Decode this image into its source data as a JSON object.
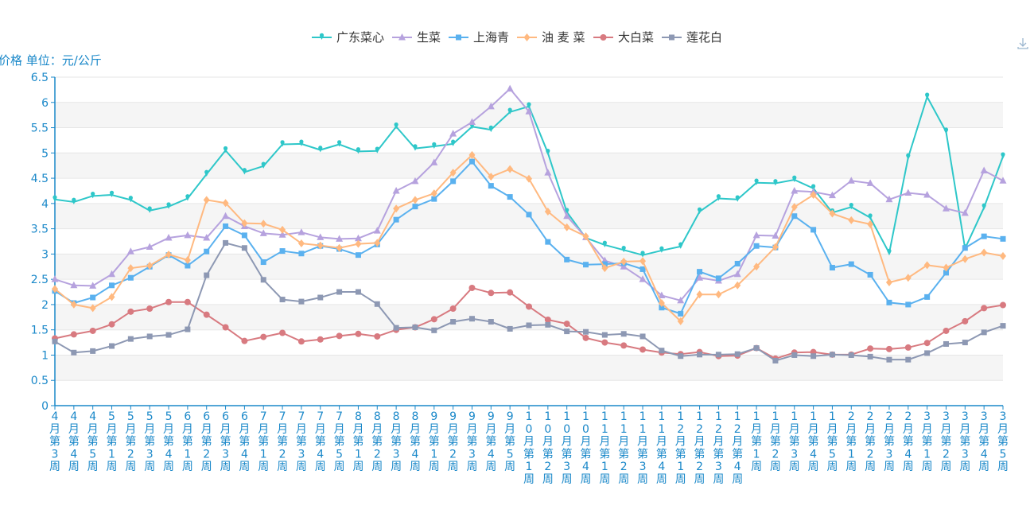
{
  "chart_data": {
    "type": "line",
    "ylabel": "价格 单位：元/公斤",
    "ylim": [
      0,
      6.5
    ],
    "yticks": [
      "0",
      "0.5",
      "1",
      "1.5",
      "2",
      "2.5",
      "3",
      "3.5",
      "4",
      "4.5",
      "5",
      "5.5",
      "6",
      "6.5"
    ],
    "grid": "horizontal bands",
    "legend_position": "top-center",
    "categories": [
      "4月第3周",
      "4月第4周",
      "4月第5周",
      "5月第1周",
      "5月第2周",
      "5月第3周",
      "5月第4周",
      "6月第1周",
      "6月第2周",
      "6月第3周",
      "6月第4周",
      "7月第1周",
      "7月第2周",
      "7月第3周",
      "7月第4周",
      "7月第5周",
      "8月第1周",
      "8月第2周",
      "8月第3周",
      "8月第4周",
      "9月第1周",
      "9月第2周",
      "9月第3周",
      "9月第4周",
      "9月第5周",
      "10月第1周",
      "10月第2周",
      "10月第3周",
      "10月第4周",
      "11月第1周",
      "11月第2周",
      "11月第3周",
      "11月第4周",
      "12月第1周",
      "12月第2周",
      "12月第3周",
      "12月第4周",
      "1月第1周",
      "1月第2周",
      "1月第3周",
      "1月第4周",
      "1月第5周",
      "2月第1周",
      "2月第2周",
      "2月第3周",
      "2月第4周",
      "3月第1周",
      "3月第2周",
      "3月第3周",
      "3月第4周",
      "3月第5周"
    ],
    "series": [
      {
        "name": "广东菜心",
        "color": "#2ec7c9",
        "marker": "pin",
        "values": [
          4.08,
          4.03,
          4.15,
          4.17,
          4.07,
          3.86,
          3.94,
          4.1,
          4.58,
          5.05,
          4.62,
          4.74,
          5.17,
          5.18,
          5.06,
          5.17,
          5.03,
          5.04,
          5.52,
          5.09,
          5.13,
          5.18,
          5.52,
          5.46,
          5.81,
          5.92,
          5.0,
          3.83,
          3.32,
          3.18,
          3.08,
          2.98,
          3.07,
          3.15,
          3.84,
          4.1,
          4.08,
          4.41,
          4.4,
          4.47,
          4.3,
          3.82,
          3.93,
          3.72,
          3.02,
          4.91,
          6.11,
          5.42,
          3.11,
          3.92,
          4.93
        ]
      },
      {
        "name": "生菜",
        "color": "#b6a2de",
        "marker": "triangle",
        "values": [
          2.5,
          2.38,
          2.37,
          2.6,
          3.05,
          3.14,
          3.32,
          3.37,
          3.32,
          3.75,
          3.55,
          3.41,
          3.38,
          3.43,
          3.33,
          3.3,
          3.31,
          3.46,
          4.25,
          4.44,
          4.81,
          5.38,
          5.61,
          5.92,
          6.27,
          5.82,
          4.61,
          3.75,
          3.33,
          2.87,
          2.75,
          2.5,
          2.18,
          2.08,
          2.53,
          2.47,
          2.6,
          3.37,
          3.36,
          4.25,
          4.23,
          4.16,
          4.45,
          4.4,
          4.08,
          4.21,
          4.17,
          3.9,
          3.81,
          4.65,
          4.45
        ]
      },
      {
        "name": "上海青",
        "color": "#5ab1ef",
        "marker": "square",
        "values": [
          2.27,
          2.03,
          2.14,
          2.38,
          2.53,
          2.75,
          2.98,
          2.77,
          3.05,
          3.55,
          3.37,
          2.84,
          3.06,
          3.01,
          3.16,
          3.1,
          2.98,
          3.19,
          3.68,
          3.94,
          4.09,
          4.44,
          4.83,
          4.35,
          4.13,
          3.78,
          3.24,
          2.89,
          2.79,
          2.8,
          2.82,
          2.7,
          1.94,
          1.82,
          2.65,
          2.52,
          2.81,
          3.16,
          3.13,
          3.75,
          3.48,
          2.73,
          2.8,
          2.59,
          2.04,
          2.0,
          2.15,
          2.63,
          3.12,
          3.35,
          3.3
        ]
      },
      {
        "name": "油 麦 菜",
        "color": "#ffb980",
        "marker": "diamond",
        "values": [
          2.31,
          2.0,
          1.93,
          2.15,
          2.72,
          2.77,
          2.99,
          2.88,
          4.07,
          4.01,
          3.61,
          3.6,
          3.48,
          3.21,
          3.17,
          3.12,
          3.2,
          3.22,
          3.9,
          4.07,
          4.2,
          4.61,
          4.96,
          4.53,
          4.68,
          4.49,
          3.84,
          3.53,
          3.35,
          2.72,
          2.85,
          2.86,
          2.03,
          1.67,
          2.2,
          2.2,
          2.38,
          2.75,
          3.14,
          3.93,
          4.17,
          3.8,
          3.67,
          3.59,
          2.44,
          2.53,
          2.78,
          2.73,
          2.9,
          3.03,
          2.96
        ]
      },
      {
        "name": "大白菜",
        "color": "#d87a80",
        "marker": "circle",
        "values": [
          1.33,
          1.41,
          1.48,
          1.61,
          1.86,
          1.92,
          2.05,
          2.05,
          1.8,
          1.55,
          1.28,
          1.36,
          1.44,
          1.27,
          1.31,
          1.38,
          1.42,
          1.37,
          1.5,
          1.55,
          1.71,
          1.92,
          2.33,
          2.23,
          2.24,
          1.96,
          1.7,
          1.62,
          1.34,
          1.25,
          1.19,
          1.11,
          1.05,
          1.02,
          1.06,
          0.98,
          0.99,
          1.14,
          0.93,
          1.05,
          1.06,
          1.01,
          1.01,
          1.13,
          1.12,
          1.15,
          1.24,
          1.48,
          1.67,
          1.93,
          1.99
        ]
      },
      {
        "name": "莲花白",
        "color": "#8d98b3",
        "marker": "square",
        "values": [
          1.27,
          1.05,
          1.08,
          1.18,
          1.32,
          1.37,
          1.4,
          1.51,
          2.58,
          3.22,
          3.12,
          2.49,
          2.1,
          2.06,
          2.14,
          2.25,
          2.25,
          2.01,
          1.54,
          1.55,
          1.49,
          1.66,
          1.72,
          1.66,
          1.52,
          1.59,
          1.6,
          1.47,
          1.46,
          1.4,
          1.42,
          1.37,
          1.09,
          0.98,
          1.01,
          1.01,
          1.02,
          1.14,
          0.89,
          1.0,
          0.98,
          1.01,
          1.0,
          0.97,
          0.91,
          0.91,
          1.04,
          1.22,
          1.25,
          1.45,
          1.58
        ]
      }
    ]
  }
}
